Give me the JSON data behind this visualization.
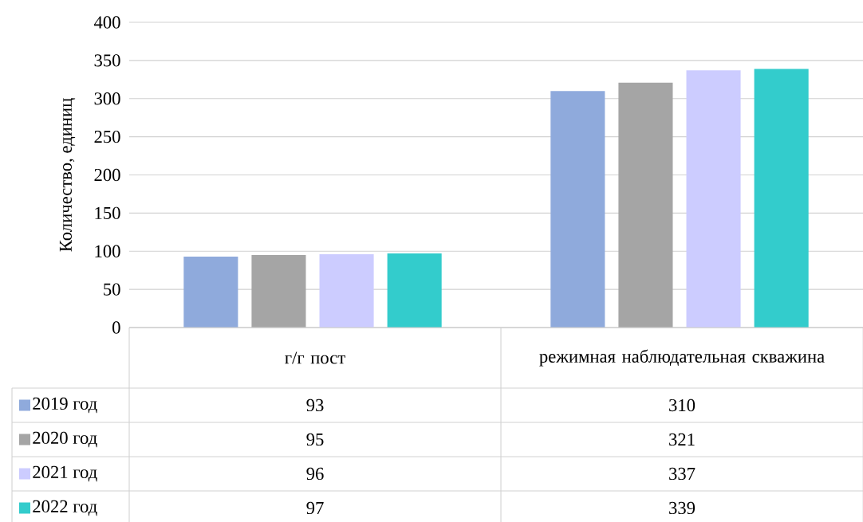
{
  "chart_data": {
    "type": "bar",
    "ylabel": "Количество, единиц",
    "categories": [
      "г/г пост",
      "режимная наблюдательная скважина"
    ],
    "series": [
      {
        "name": "2019 год",
        "color": "#8faadc",
        "values": [
          93,
          310
        ]
      },
      {
        "name": "2020 год",
        "color": "#a5a5a5",
        "values": [
          95,
          321
        ]
      },
      {
        "name": "2021 год",
        "color": "#ccccff",
        "values": [
          96,
          337
        ]
      },
      {
        "name": "2022 год",
        "color": "#33cccc",
        "values": [
          97,
          339
        ]
      }
    ],
    "ylim": [
      0,
      400
    ],
    "yticks": [
      0,
      50,
      100,
      150,
      200,
      250,
      300,
      350,
      400
    ],
    "grid": "y",
    "legend": "bottom",
    "data_labels": true
  }
}
